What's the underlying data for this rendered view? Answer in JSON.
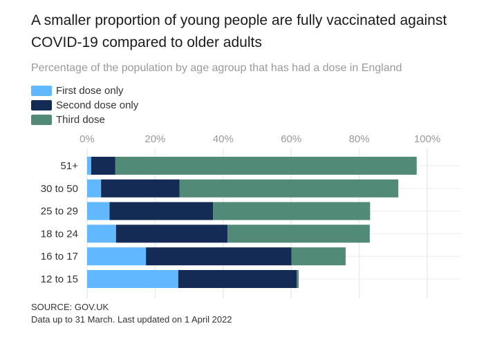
{
  "chart_data": {
    "type": "bar",
    "orientation": "horizontal",
    "stacked": true,
    "title": "A smaller proportion of young people are fully vaccinated against COVID-19 compared to older adults",
    "subtitle": "Percentage of the population by age agroup that has had a dose in England",
    "categories": [
      "51+",
      "30 to 50",
      "25 to 29",
      "18 to 24",
      "16 to 17",
      "12 to 15"
    ],
    "series": [
      {
        "name": "First dose only",
        "color": "#62b8fc",
        "values": [
          1.2,
          4.1,
          6.6,
          8.5,
          17.3,
          26.8
        ]
      },
      {
        "name": "Second dose only",
        "color": "#142c55",
        "values": [
          7.1,
          23.1,
          30.4,
          32.8,
          42.8,
          34.8
        ]
      },
      {
        "name": "Third dose",
        "color": "#528a78",
        "values": [
          88.6,
          64.3,
          46.2,
          41.8,
          15.9,
          0.6
        ]
      }
    ],
    "xlim": [
      0,
      110
    ],
    "xticks": [
      0,
      20,
      40,
      60,
      80,
      100
    ],
    "xtick_labels": [
      "0%",
      "20%",
      "40%",
      "60%",
      "80%",
      "100%"
    ],
    "grid": true,
    "legend_placement": "top-left"
  },
  "footer": {
    "source": "SOURCE: GOV.UK",
    "note": "Data up to 31 March. Last updated on 1 April 2022"
  }
}
